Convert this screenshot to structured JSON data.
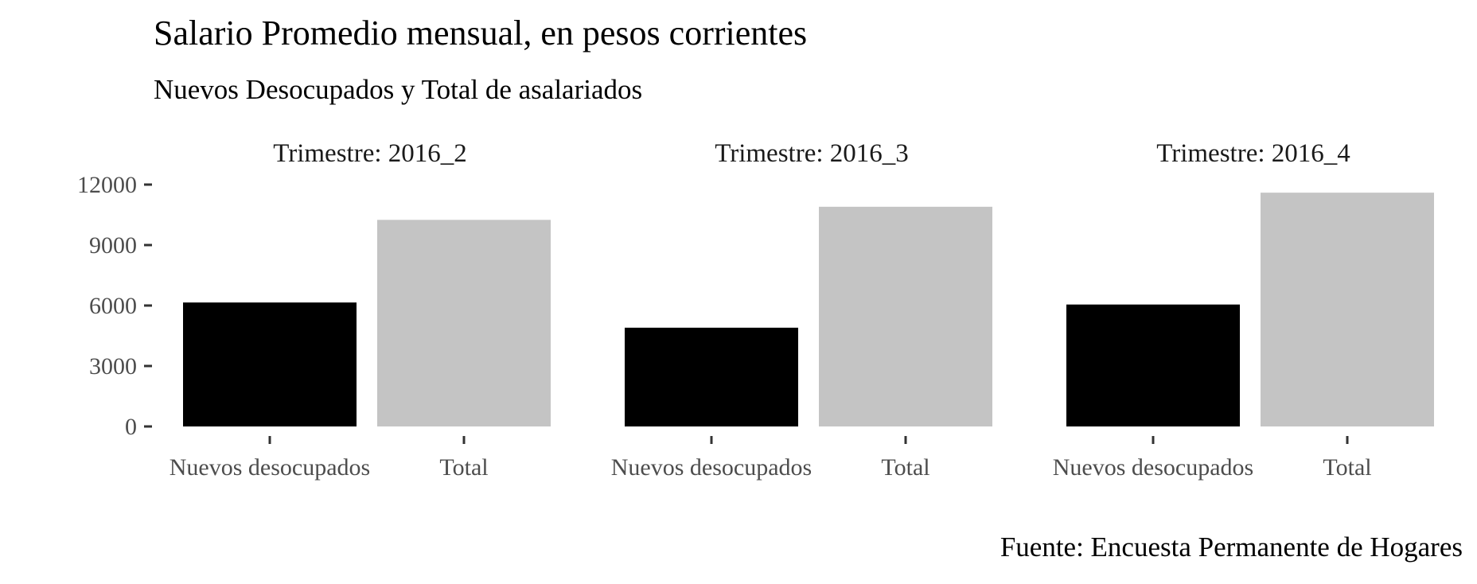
{
  "chart_data": {
    "type": "bar",
    "title": "Salario Promedio mensual, en pesos corrientes",
    "subtitle": "Nuevos Desocupados y Total de asalariados",
    "caption": "Fuente: Encuesta Permanente de Hogares",
    "xlabel": "",
    "ylabel": "",
    "categories": [
      "Nuevos desocupados",
      "Total"
    ],
    "colors": {
      "Nuevos desocupados": "#000000",
      "Total": "#c4c4c4"
    },
    "ylim": [
      0,
      12000
    ],
    "yticks": [
      0,
      3000,
      6000,
      9000,
      12000
    ],
    "grid": false,
    "legend": "none",
    "facets": [
      {
        "label": "Trimestre: 2016_2",
        "values": [
          6150,
          10250
        ]
      },
      {
        "label": "Trimestre: 2016_3",
        "values": [
          4900,
          10900
        ]
      },
      {
        "label": "Trimestre: 2016_4",
        "values": [
          6050,
          11600
        ]
      }
    ]
  }
}
